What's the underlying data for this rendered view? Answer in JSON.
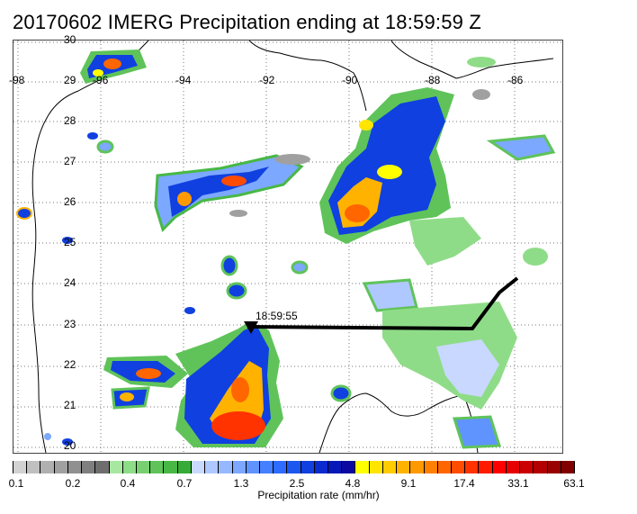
{
  "title": "20170602 IMERG Precipitation ending at 18:59:59 Z",
  "lon_labels": [
    "-98",
    "-96",
    "-94",
    "-92",
    "-90",
    "-88",
    "-86"
  ],
  "lat_labels": [
    "30",
    "29",
    "28",
    "27",
    "26",
    "25",
    "24",
    "23",
    "22",
    "21",
    "20"
  ],
  "track_time": "18:59:55",
  "colorbar": {
    "title": "Precipitation rate (mm/hr)",
    "ticks": [
      "0.1",
      "0.2",
      "0.4",
      "0.7",
      "1.3",
      "2.5",
      "4.8",
      "9.1",
      "17.4",
      "33.1",
      "63.1"
    ],
    "colors": [
      "#d2d2d2",
      "#c0c0c0",
      "#b0b0b0",
      "#a0a0a0",
      "#909090",
      "#7f7f7f",
      "#6e6e6e",
      "#a7e8a0",
      "#8fdc88",
      "#78d070",
      "#5fc35a",
      "#48b845",
      "#36ab38",
      "#c8d8ff",
      "#afc8ff",
      "#96b8ff",
      "#7ca8ff",
      "#5f94ff",
      "#4480ff",
      "#2e6cff",
      "#1c58f0",
      "#1040e0",
      "#0a2bd0",
      "#0718b8",
      "#0a0aa0",
      "#ffff00",
      "#ffe500",
      "#ffcc00",
      "#ffb300",
      "#ff9900",
      "#ff8000",
      "#ff6600",
      "#ff4c00",
      "#ff3300",
      "#ff1a00",
      "#ff0000",
      "#e60000",
      "#cc0000",
      "#b30000",
      "#990000",
      "#800000"
    ]
  }
}
